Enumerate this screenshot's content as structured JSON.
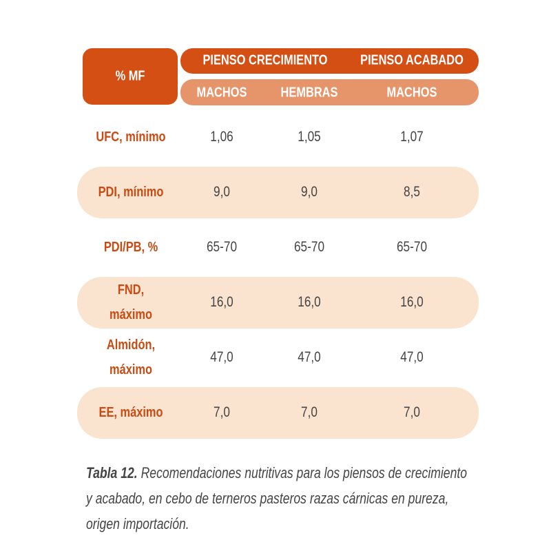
{
  "header": {
    "corner": "% MF",
    "groups": [
      "PIENSO CRECIMIENTO",
      "PIENSO ACABADO"
    ],
    "subheaders": [
      "MACHOS",
      "HEMBRAS",
      "MACHOS"
    ]
  },
  "table": {
    "rows": [
      {
        "label": [
          "UFC, mínimo"
        ],
        "values": [
          "1,06",
          "1,05",
          "1,07"
        ]
      },
      {
        "label": [
          "PDI, mínimo"
        ],
        "values": [
          "9,0",
          "9,0",
          "8,5"
        ]
      },
      {
        "label": [
          "PDI/PB, %"
        ],
        "values": [
          "65-70",
          "65-70",
          "65-70"
        ]
      },
      {
        "label": [
          "FND,",
          "máximo"
        ],
        "values": [
          "16,0",
          "16,0",
          "16,0"
        ]
      },
      {
        "label": [
          "Almidón,",
          "máximo"
        ],
        "values": [
          "47,0",
          "47,0",
          "47,0"
        ]
      },
      {
        "label": [
          "EE, máximo"
        ],
        "values": [
          "7,0",
          "7,0",
          "7,0"
        ]
      }
    ]
  },
  "caption": {
    "label": "Tabla 12.",
    "text": "Recomendaciones nutritivas para los piensos de crecimiento y acabado, en cebo de terneros pasteros razas cárnicas en pureza, origen importación."
  }
}
